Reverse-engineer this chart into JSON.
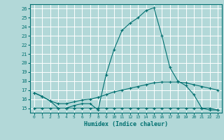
{
  "title": "",
  "xlabel": "Humidex (Indice chaleur)",
  "background_color": "#b2d8d8",
  "grid_color": "#ffffff",
  "line_color": "#007070",
  "x_values": [
    0,
    1,
    2,
    3,
    4,
    5,
    6,
    7,
    8,
    9,
    10,
    11,
    12,
    13,
    14,
    15,
    16,
    17,
    18,
    19,
    20,
    21,
    22,
    23
  ],
  "line1": [
    16.7,
    16.3,
    15.8,
    15.0,
    15.0,
    15.3,
    15.5,
    15.5,
    14.8,
    18.7,
    21.5,
    23.6,
    24.4,
    25.0,
    25.8,
    26.1,
    23.0,
    19.5,
    18.0,
    17.5,
    16.5,
    15.0,
    14.8,
    14.8
  ],
  "line2": [
    16.7,
    16.3,
    15.8,
    15.5,
    15.5,
    15.7,
    15.9,
    16.0,
    16.2,
    16.5,
    16.8,
    17.0,
    17.2,
    17.4,
    17.6,
    17.8,
    17.9,
    17.9,
    17.9,
    17.8,
    17.6,
    17.4,
    17.2,
    17.0
  ],
  "line3": [
    15.0,
    15.0,
    15.0,
    15.0,
    15.0,
    15.0,
    15.0,
    15.0,
    15.0,
    15.0,
    15.0,
    15.0,
    15.0,
    15.0,
    15.0,
    15.0,
    15.0,
    15.0,
    15.0,
    15.0,
    15.0,
    15.0,
    15.0,
    14.8
  ],
  "ylim": [
    14.5,
    26.5
  ],
  "xlim": [
    -0.5,
    23.5
  ],
  "yticks": [
    15,
    16,
    17,
    18,
    19,
    20,
    21,
    22,
    23,
    24,
    25,
    26
  ],
  "xticks": [
    0,
    1,
    2,
    3,
    4,
    5,
    6,
    7,
    8,
    9,
    10,
    11,
    12,
    13,
    14,
    15,
    16,
    17,
    18,
    19,
    20,
    21,
    22,
    23
  ]
}
